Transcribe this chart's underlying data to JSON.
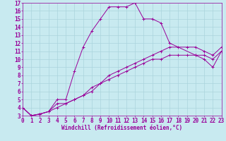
{
  "xlabel": "Windchill (Refroidissement éolien,°C)",
  "xlim": [
    0,
    23
  ],
  "ylim": [
    3,
    17
  ],
  "xticks": [
    0,
    1,
    2,
    3,
    4,
    5,
    6,
    7,
    8,
    9,
    10,
    11,
    12,
    13,
    14,
    15,
    16,
    17,
    18,
    19,
    20,
    21,
    22,
    23
  ],
  "yticks": [
    3,
    4,
    5,
    6,
    7,
    8,
    9,
    10,
    11,
    12,
    13,
    14,
    15,
    16,
    17
  ],
  "bg_color": "#c8eaf0",
  "grid_color": "#aad4dc",
  "line_color": "#990099",
  "line1_x": [
    0,
    1,
    2,
    3,
    4,
    5,
    6,
    7,
    8,
    9,
    10,
    11,
    12,
    13,
    14,
    15,
    16,
    17,
    20,
    21,
    22,
    23
  ],
  "line1_y": [
    4.0,
    3.0,
    3.2,
    3.5,
    5.0,
    5.0,
    8.5,
    11.5,
    13.5,
    15.0,
    16.5,
    16.5,
    16.5,
    17.0,
    15.0,
    15.0,
    14.5,
    12.0,
    10.5,
    10.0,
    9.0,
    11.0
  ],
  "line2_x": [
    0,
    1,
    2,
    3,
    4,
    5,
    6,
    7,
    8,
    9,
    10,
    11,
    12,
    13,
    14,
    15,
    16,
    17,
    18,
    19,
    20,
    21,
    22,
    23
  ],
  "line2_y": [
    4.0,
    3.0,
    3.2,
    3.5,
    4.5,
    4.5,
    5.0,
    5.5,
    6.0,
    7.0,
    7.5,
    8.0,
    8.5,
    9.0,
    9.5,
    10.0,
    10.0,
    10.5,
    10.5,
    10.5,
    10.5,
    10.5,
    10.0,
    11.0
  ],
  "line3_x": [
    0,
    1,
    2,
    3,
    4,
    5,
    6,
    7,
    8,
    9,
    10,
    11,
    12,
    13,
    14,
    15,
    16,
    17,
    18,
    19,
    20,
    21,
    22,
    23
  ],
  "line3_y": [
    4.0,
    3.0,
    3.2,
    3.5,
    4.0,
    4.5,
    5.0,
    5.5,
    6.5,
    7.0,
    8.0,
    8.5,
    9.0,
    9.5,
    10.0,
    10.5,
    11.0,
    11.5,
    11.5,
    11.5,
    11.5,
    11.0,
    10.5,
    11.5
  ],
  "tick_fontsize": 5.5,
  "xlabel_fontsize": 5.5
}
